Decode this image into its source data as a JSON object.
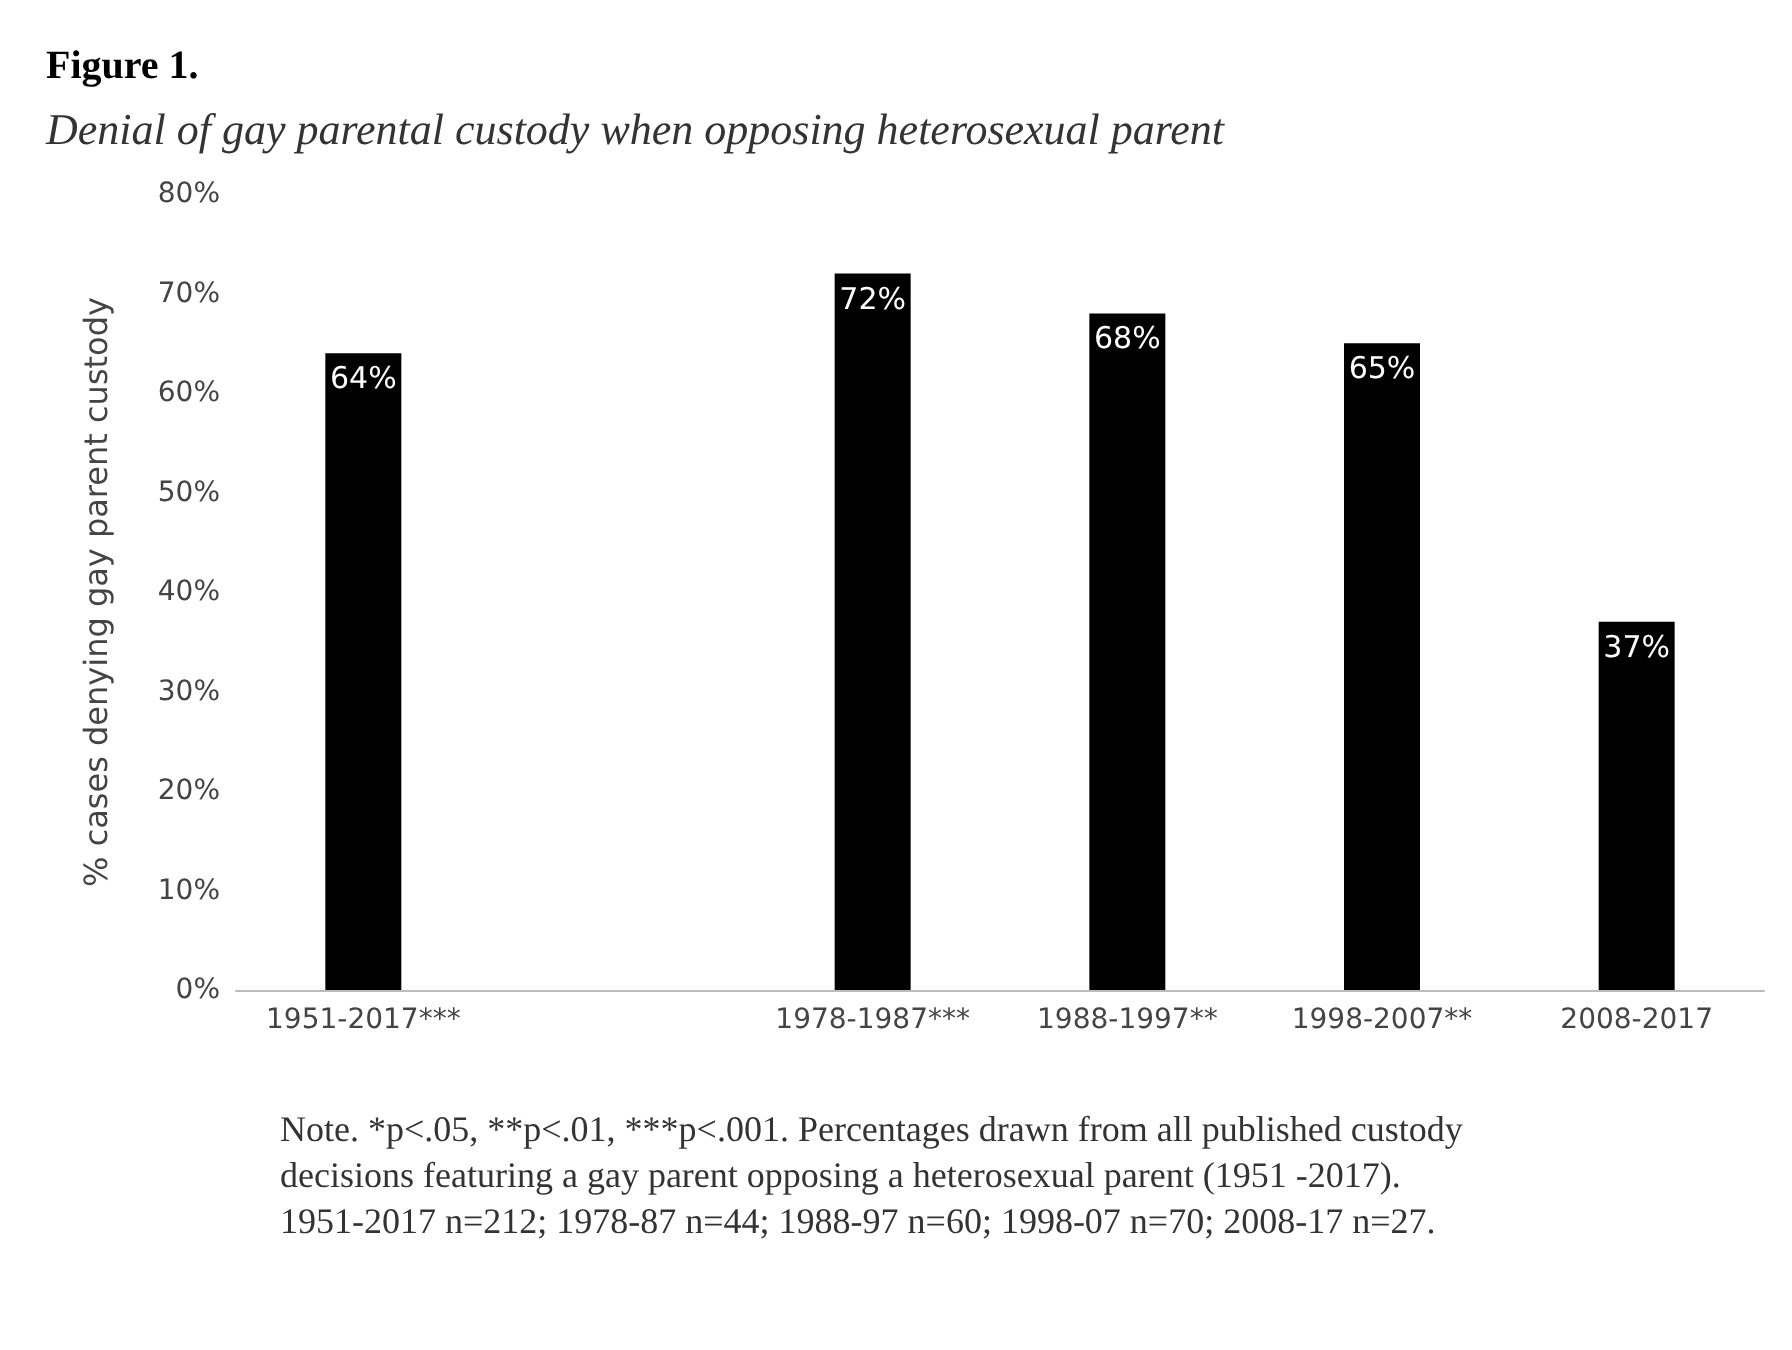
{
  "chart_data": {
    "type": "bar",
    "title": "Figure 1.",
    "subtitle": "Denial of gay parental custody when opposing heterosexual parent",
    "ylabel": "% cases denying gay parent custody",
    "categories": [
      "1951-2017***",
      null,
      "1978-1987***",
      "1988-1997**",
      "1998-2007**",
      "2008-2017"
    ],
    "values": [
      64,
      null,
      72,
      68,
      65,
      37
    ],
    "color": "#000000",
    "value_labels": [
      "64%",
      null,
      "72%",
      "68%",
      "65%",
      "37%"
    ],
    "ylim": [
      0,
      80
    ],
    "yticks": [
      {
        "value": 0,
        "label": "0%"
      },
      {
        "value": 10,
        "label": "10%"
      },
      {
        "value": 20,
        "label": "20%"
      },
      {
        "value": 30,
        "label": "30%"
      },
      {
        "value": 40,
        "label": "40%"
      },
      {
        "value": 50,
        "label": "50%"
      },
      {
        "value": 60,
        "label": "60%"
      },
      {
        "value": 70,
        "label": "70%"
      },
      {
        "value": 80,
        "label": "80%"
      }
    ],
    "grid": false,
    "annotations": [
      "Note. *p<.05, **p<.01, ***p<.001. Percentages drawn from all published custody decisions featuring a gay parent opposing a heterosexual parent (1951 -2017).  1951-2017 n=212; 1978-87 n=44; 1988-97 n=60; 1998-07 n=70; 2008-17 n=27."
    ]
  }
}
